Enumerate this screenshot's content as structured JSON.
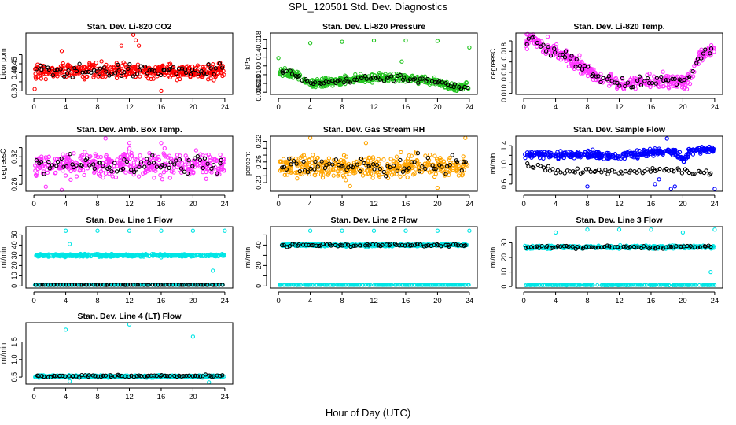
{
  "figure": {
    "title": "SPL_120501  Std. Dev. Diagnostics",
    "xlabel": "Hour of Day (UTC)"
  },
  "colors": {
    "axis": "#000000",
    "co2": "#ff0000",
    "pressure": "#22c41f",
    "temp": "#ff33ff",
    "rh": "#ffa500",
    "flow": "#0000ff",
    "line_flow": "#00e5e5",
    "overlay": "#000000"
  },
  "chart_data": [
    {
      "type": "scatter",
      "title": "Stan. Dev. Li-820 CO2",
      "ylabel": "Licor ppm",
      "xlim": [
        -1,
        25
      ],
      "ylim": [
        0.28,
        0.62
      ],
      "xticks": [
        0,
        4,
        8,
        12,
        16,
        20,
        24
      ],
      "yticks": [
        0.3,
        0.35,
        0.4,
        0.45,
        0.5
      ],
      "ytick_labels": [
        "0.30",
        "",
        "0.40",
        "0.45",
        ""
      ],
      "color_key": "co2",
      "band": {
        "center": 0.41,
        "spread": 0.04
      },
      "outliers": [
        [
          0.1,
          0.31
        ],
        [
          12.5,
          0.61
        ],
        [
          12.8,
          0.58
        ],
        [
          13.2,
          0.55
        ],
        [
          16,
          0.3
        ],
        [
          11,
          0.55
        ],
        [
          3.5,
          0.52
        ]
      ],
      "overlay": {
        "center": 0.41,
        "spread": 0.035
      }
    },
    {
      "type": "scatter",
      "title": "Stan. Dev. Li-820 Pressure",
      "ylabel": "kPa",
      "xlim": [
        -1,
        25
      ],
      "ylim": [
        0.0055,
        0.0195
      ],
      "xticks": [
        0,
        4,
        8,
        12,
        16,
        20,
        24
      ],
      "yticks": [
        0.006,
        0.008,
        0.01,
        0.012,
        0.014,
        0.016,
        0.018
      ],
      "ytick_labels": [
        "0.006",
        "0.008",
        "0.010",
        "",
        "0.014",
        "",
        "0.018"
      ],
      "color_key": "pressure",
      "trend": [
        [
          0,
          0.0105
        ],
        [
          2,
          0.0102
        ],
        [
          4,
          0.0078
        ],
        [
          8,
          0.0087
        ],
        [
          12,
          0.0093
        ],
        [
          16,
          0.0093
        ],
        [
          20,
          0.0085
        ],
        [
          22,
          0.007
        ],
        [
          24,
          0.0075
        ]
      ],
      "trend_spread": 0.0009,
      "outliers": [
        [
          0,
          0.0138
        ],
        [
          4,
          0.0172
        ],
        [
          8,
          0.0175
        ],
        [
          12,
          0.0178
        ],
        [
          16,
          0.0178
        ],
        [
          20,
          0.0177
        ],
        [
          24,
          0.0162
        ],
        [
          15.5,
          0.013
        ]
      ],
      "overlay_trend_shift": 0.0
    },
    {
      "type": "scatter",
      "title": "Stan. Dev. Li-820 Temp.",
      "ylabel": "degreesC",
      "xlim": [
        -1,
        25
      ],
      "ylim": [
        0.0098,
        0.0215
      ],
      "xticks": [
        0,
        4,
        8,
        12,
        16,
        20,
        24
      ],
      "yticks": [
        0.01,
        0.012,
        0.014,
        0.016,
        0.018,
        0.02
      ],
      "ytick_labels": [
        "0.010",
        "",
        "0.014",
        "",
        "0.018",
        ""
      ],
      "color_key": "temp",
      "trend": [
        [
          0,
          0.0195
        ],
        [
          1,
          0.0205
        ],
        [
          3,
          0.0185
        ],
        [
          6,
          0.0165
        ],
        [
          9,
          0.0135
        ],
        [
          12,
          0.0118
        ],
        [
          15,
          0.0122
        ],
        [
          18,
          0.0125
        ],
        [
          20,
          0.0122
        ],
        [
          21,
          0.013
        ],
        [
          22,
          0.017
        ],
        [
          24,
          0.0185
        ]
      ],
      "trend_spread": 0.0012,
      "outliers": [
        [
          0.5,
          0.0213
        ],
        [
          1.2,
          0.0212
        ],
        [
          3,
          0.0208
        ],
        [
          20.5,
          0.0108
        ]
      ],
      "overlay_trend_shift": 0.0
    },
    {
      "type": "scatter",
      "title": "Stan. Dev. Amb. Box Temp.",
      "ylabel": "degreesC",
      "xlim": [
        -1,
        25
      ],
      "ylim": [
        0.245,
        0.365
      ],
      "xticks": [
        0,
        4,
        8,
        12,
        16,
        20,
        24
      ],
      "yticks": [
        0.26,
        0.28,
        0.3,
        0.32,
        0.34
      ],
      "ytick_labels": [
        "0.26",
        "",
        "",
        "0.32",
        ""
      ],
      "color_key": "temp",
      "band": {
        "center": 0.303,
        "spread": 0.025
      },
      "outliers": [
        [
          1.5,
          0.255
        ],
        [
          3.5,
          0.248
        ],
        [
          9,
          0.36
        ],
        [
          12,
          0.35
        ],
        [
          16,
          0.35
        ]
      ],
      "overlay": {
        "center": 0.303,
        "spread": 0.02
      }
    },
    {
      "type": "scatter",
      "title": "Stan. Dev. Gas Stream RH",
      "ylabel": "percent",
      "xlim": [
        -1,
        25
      ],
      "ylim": [
        0.175,
        0.335
      ],
      "xticks": [
        0,
        4,
        8,
        12,
        16,
        20,
        24
      ],
      "yticks": [
        0.2,
        0.22,
        0.24,
        0.26,
        0.28,
        0.3,
        0.32
      ],
      "ytick_labels": [
        "0.20",
        "",
        "",
        "0.26",
        "",
        "",
        "0.32"
      ],
      "color_key": "rh",
      "band": {
        "center": 0.247,
        "spread": 0.03
      },
      "outliers": [
        [
          4,
          0.33
        ],
        [
          20,
          0.185
        ],
        [
          23.5,
          0.33
        ],
        [
          11,
          0.315
        ],
        [
          9,
          0.19
        ]
      ],
      "overlay": {
        "center": 0.248,
        "spread": 0.03
      }
    },
    {
      "type": "scatter",
      "title": "Stan. Dev. Sample Flow",
      "ylabel": "ml/min",
      "xlim": [
        -1,
        25
      ],
      "ylim": [
        0.45,
        1.6
      ],
      "xticks": [
        0,
        4,
        8,
        12,
        16,
        20,
        24
      ],
      "yticks": [
        0.6,
        0.8,
        1.0,
        1.2,
        1.4
      ],
      "ytick_labels": [
        "0.6",
        "",
        "1.0",
        "",
        "1.4"
      ],
      "color_key": "flow",
      "trend": [
        [
          0,
          1.22
        ],
        [
          4,
          1.2
        ],
        [
          8,
          1.22
        ],
        [
          12,
          1.18
        ],
        [
          16,
          1.27
        ],
        [
          19,
          1.28
        ],
        [
          20,
          1.1
        ],
        [
          21,
          1.3
        ],
        [
          24,
          1.33
        ]
      ],
      "trend_spread": 0.07,
      "outliers": [
        [
          8,
          0.55
        ],
        [
          16.5,
          0.6
        ],
        [
          18,
          1.55
        ],
        [
          18.5,
          0.5
        ],
        [
          24,
          0.5
        ],
        [
          17,
          0.7
        ],
        [
          19,
          0.55
        ]
      ],
      "overlay_trend": [
        [
          0,
          1.0
        ],
        [
          4,
          0.86
        ],
        [
          8,
          0.88
        ],
        [
          12,
          0.86
        ],
        [
          16,
          0.9
        ],
        [
          20,
          0.88
        ],
        [
          24,
          0.85
        ]
      ],
      "overlay_spread": 0.07
    },
    {
      "type": "scatter",
      "title": "Stan. Dev. Line 1 Flow",
      "ylabel": "ml/min",
      "xlim": [
        -1,
        25
      ],
      "ylim": [
        -2,
        58
      ],
      "xticks": [
        0,
        4,
        8,
        12,
        16,
        20,
        24
      ],
      "yticks": [
        0,
        10,
        20,
        30,
        40,
        50
      ],
      "ytick_labels": [
        "0",
        "10",
        "20",
        "30",
        "40",
        "50"
      ],
      "color_key": "line_flow",
      "band": {
        "center": 30,
        "spread": 1.2
      },
      "low_band": {
        "center": 1.0,
        "spread": 0.2
      },
      "outliers": [
        [
          4,
          54
        ],
        [
          8,
          54
        ],
        [
          12,
          54
        ],
        [
          16,
          54
        ],
        [
          20,
          54
        ],
        [
          24,
          54
        ],
        [
          4.5,
          41
        ],
        [
          22.5,
          15
        ],
        [
          16,
          28
        ]
      ],
      "overlay": {
        "center": 1.2,
        "spread": 0.15
      }
    },
    {
      "type": "scatter",
      "title": "Stan. Dev. Line 2 Flow",
      "ylabel": "ml/min",
      "xlim": [
        -1,
        25
      ],
      "ylim": [
        -2,
        58
      ],
      "xticks": [
        0,
        4,
        8,
        12,
        16,
        20,
        24
      ],
      "yticks": [
        0,
        10,
        20,
        30,
        40,
        50
      ],
      "ytick_labels": [
        "0",
        "",
        "20",
        "",
        "40",
        ""
      ],
      "color_key": "line_flow",
      "band": {
        "center": 40,
        "spread": 1.2
      },
      "low_band": {
        "center": 1.0,
        "spread": 0.2
      },
      "outliers": [
        [
          4,
          54
        ],
        [
          8,
          54
        ],
        [
          12,
          54
        ],
        [
          16,
          54
        ],
        [
          20,
          54
        ],
        [
          24,
          54
        ]
      ],
      "overlay": {
        "center": 40,
        "spread": 1.5
      }
    },
    {
      "type": "scatter",
      "title": "Stan. Dev. Line 3 Flow",
      "ylabel": "ml/min",
      "xlim": [
        -1,
        25
      ],
      "ylim": [
        -1,
        41
      ],
      "xticks": [
        0,
        4,
        8,
        12,
        16,
        20,
        24
      ],
      "yticks": [
        0,
        10,
        20,
        30
      ],
      "ytick_labels": [
        "0",
        "10",
        "20",
        "30"
      ],
      "color_key": "line_flow",
      "band": {
        "center": 27,
        "spread": 1.0
      },
      "low_band": {
        "center": 1.0,
        "spread": 0.2
      },
      "outliers": [
        [
          4,
          37
        ],
        [
          8,
          39
        ],
        [
          12,
          39
        ],
        [
          16,
          39
        ],
        [
          20,
          37
        ],
        [
          23.5,
          10
        ],
        [
          24,
          39
        ]
      ],
      "overlay": {
        "center": 27,
        "spread": 1.0
      }
    },
    {
      "type": "scatter",
      "title": "Stan. Dev. Line 4 (LT) Flow",
      "ylabel": "ml/min",
      "xlim": [
        -1,
        25
      ],
      "ylim": [
        0.3,
        2.05
      ],
      "xticks": [
        0,
        4,
        8,
        12,
        16,
        20,
        24
      ],
      "yticks": [
        0.5,
        1.0,
        1.5
      ],
      "ytick_labels": [
        "0.5",
        "1.0",
        "1.5"
      ],
      "color_key": "line_flow",
      "band": {
        "center": 0.52,
        "spread": 0.03
      },
      "outliers": [
        [
          4,
          1.85
        ],
        [
          12,
          2.0
        ],
        [
          20,
          1.65
        ],
        [
          4.5,
          0.38
        ],
        [
          22,
          0.35
        ]
      ],
      "overlay": {
        "center": 0.53,
        "spread": 0.03
      }
    }
  ]
}
